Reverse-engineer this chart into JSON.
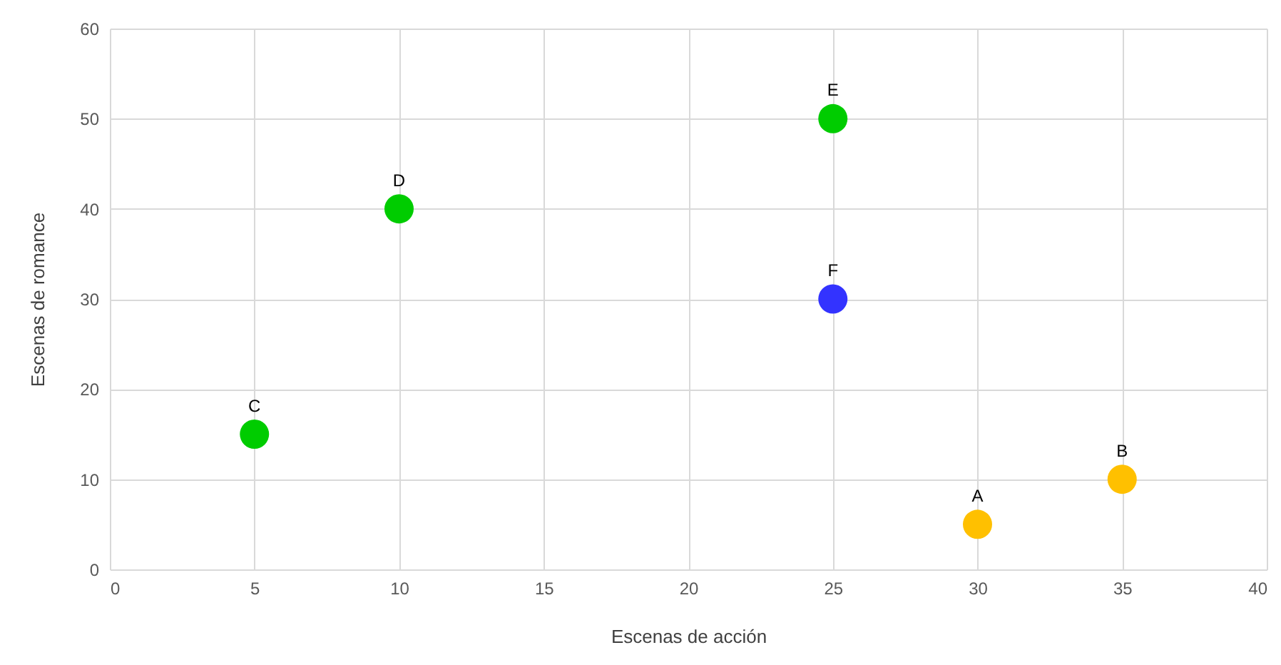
{
  "chart_data": {
    "type": "scatter",
    "xlabel": "Escenas de acción",
    "ylabel": "Escenas de romance",
    "x": [
      30,
      35,
      5,
      10,
      25,
      25
    ],
    "values": [
      5,
      10,
      15,
      40,
      50,
      30
    ],
    "colors": [
      "#ffc000",
      "#ffc000",
      "#00cc00",
      "#00cc00",
      "#00cc00",
      "#3333ff"
    ],
    "xlim": [
      0,
      40
    ],
    "xticks": [
      0,
      5,
      10,
      15,
      20,
      25,
      30,
      35,
      40
    ],
    "ylim": [
      0,
      60
    ],
    "yticks": [
      0,
      10,
      20,
      30,
      40,
      50,
      60
    ],
    "grid": true,
    "marker": "circle",
    "annotations": [
      {
        "text": "A",
        "x": 30,
        "y": 5
      },
      {
        "text": "B",
        "x": 35,
        "y": 10
      },
      {
        "text": "C",
        "x": 5,
        "y": 15
      },
      {
        "text": "D",
        "x": 10,
        "y": 40
      },
      {
        "text": "E",
        "x": 25,
        "y": 50
      },
      {
        "text": "F",
        "x": 25,
        "y": 30
      }
    ]
  }
}
